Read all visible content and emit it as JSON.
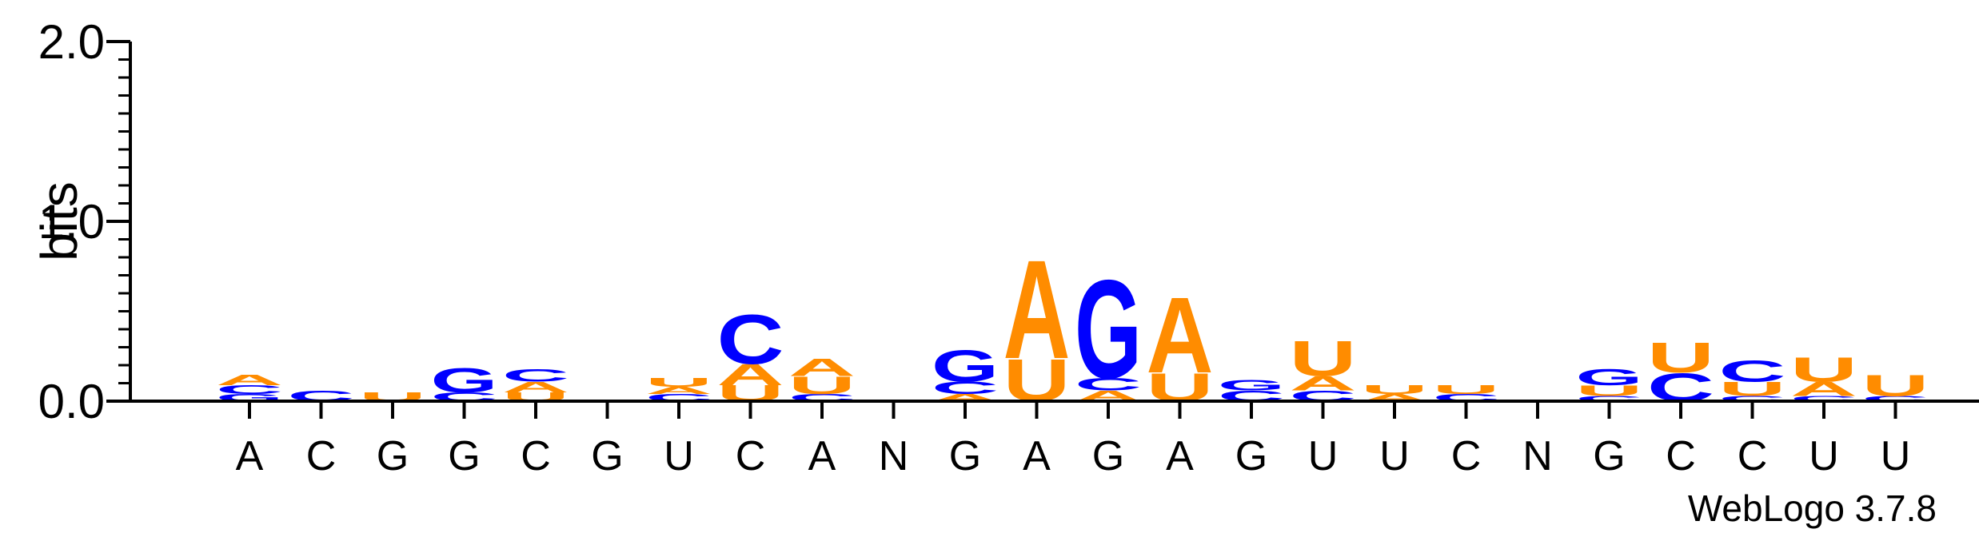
{
  "chart_data": {
    "type": "sequence-logo",
    "ylabel": "bits",
    "ylim": [
      0,
      2.0
    ],
    "yticks": [
      {
        "value": 0.0,
        "label": "0.0"
      },
      {
        "value": 1.0,
        "label": "1.0"
      },
      {
        "value": 2.0,
        "label": "2.0"
      }
    ],
    "positions": [
      "A",
      "C",
      "G",
      "G",
      "C",
      "G",
      "U",
      "C",
      "A",
      "N",
      "G",
      "A",
      "G",
      "A",
      "G",
      "U",
      "U",
      "C",
      "N",
      "G",
      "C",
      "C",
      "U",
      "U"
    ],
    "colors": {
      "A": "#ff8c00",
      "U": "#ff8c00",
      "C": "#0000ff",
      "G": "#0000ff"
    },
    "stacks": [
      [
        {
          "l": "G",
          "h": 0.04
        },
        {
          "l": "C",
          "h": 0.05
        },
        {
          "l": "A",
          "h": 0.06
        }
      ],
      [
        {
          "l": "C",
          "h": 0.06
        }
      ],
      [
        {
          "l": "U",
          "h": 0.05
        }
      ],
      [
        {
          "l": "C",
          "h": 0.05
        },
        {
          "l": "G",
          "h": 0.14
        }
      ],
      [
        {
          "l": "U",
          "h": 0.05
        },
        {
          "l": "A",
          "h": 0.06
        },
        {
          "l": "C",
          "h": 0.07
        }
      ],
      [],
      [
        {
          "l": "C",
          "h": 0.04
        },
        {
          "l": "A",
          "h": 0.04
        },
        {
          "l": "U",
          "h": 0.05
        }
      ],
      [
        {
          "l": "U",
          "h": 0.09
        },
        {
          "l": "A",
          "h": 0.12
        },
        {
          "l": "C",
          "h": 0.28
        }
      ],
      [
        {
          "l": "C",
          "h": 0.04
        },
        {
          "l": "U",
          "h": 0.1
        },
        {
          "l": "A",
          "h": 0.1
        }
      ],
      [],
      [
        {
          "l": "A",
          "h": 0.04
        },
        {
          "l": "C",
          "h": 0.07
        },
        {
          "l": "G",
          "h": 0.18
        }
      ],
      [
        {
          "l": "U",
          "h": 0.24
        },
        {
          "l": "A",
          "h": 0.56
        }
      ],
      [
        {
          "l": "A",
          "h": 0.06
        },
        {
          "l": "C",
          "h": 0.07
        },
        {
          "l": "G",
          "h": 0.56
        }
      ],
      [
        {
          "l": "U",
          "h": 0.16
        },
        {
          "l": "A",
          "h": 0.43
        }
      ],
      [
        {
          "l": "C",
          "h": 0.06
        },
        {
          "l": "G",
          "h": 0.06
        }
      ],
      [
        {
          "l": "C",
          "h": 0.06
        },
        {
          "l": "A",
          "h": 0.08
        },
        {
          "l": "U",
          "h": 0.2
        }
      ],
      [
        {
          "l": "A",
          "h": 0.04
        },
        {
          "l": "U",
          "h": 0.05
        }
      ],
      [
        {
          "l": "C",
          "h": 0.04
        },
        {
          "l": "U",
          "h": 0.05
        }
      ],
      [],
      [
        {
          "l": "C",
          "h": 0.03
        },
        {
          "l": "U",
          "h": 0.06
        },
        {
          "l": "G",
          "h": 0.09
        }
      ],
      [
        {
          "l": "C",
          "h": 0.16
        },
        {
          "l": "U",
          "h": 0.17
        }
      ],
      [
        {
          "l": "C",
          "h": 0.03
        },
        {
          "l": "U",
          "h": 0.08
        },
        {
          "l": "C",
          "h": 0.12
        }
      ],
      [
        {
          "l": "C",
          "h": 0.03
        },
        {
          "l": "A",
          "h": 0.08
        },
        {
          "l": "U",
          "h": 0.14
        }
      ],
      [
        {
          "l": "C",
          "h": 0.03
        },
        {
          "l": "U",
          "h": 0.12
        }
      ]
    ],
    "credit": "WebLogo 3.7.8"
  }
}
